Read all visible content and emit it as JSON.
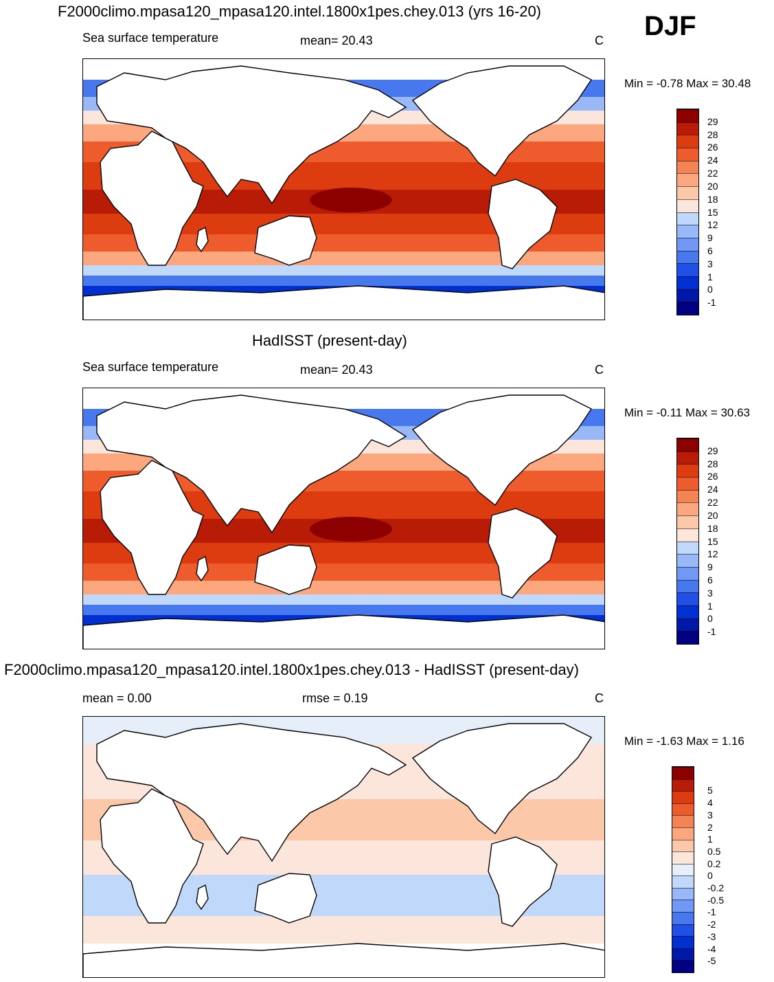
{
  "season": "DJF",
  "panels": [
    {
      "title": "F2000climo.mpasa120_mpasa120.intel.1800x1pes.chey.013 (yrs 16-20)",
      "left_label": "Sea surface temperature",
      "center_label": "mean=  20.43",
      "units": "C",
      "minmax": "Min =  -0.78 Max =  30.48",
      "colorbar": {
        "colors": [
          "#000080",
          "#0018a8",
          "#0030d0",
          "#2050e6",
          "#4878ee",
          "#7098f4",
          "#98b8f8",
          "#c0d8fa",
          "#fce6dc",
          "#fcc8aa",
          "#fca77e",
          "#f58454",
          "#ee5c2e",
          "#dc3c10",
          "#b81c06",
          "#8c0000"
        ],
        "labels": [
          "-1",
          "0",
          "1",
          "3",
          "6",
          "9",
          "12",
          "15",
          "18",
          "20",
          "22",
          "24",
          "26",
          "28",
          "29"
        ]
      }
    },
    {
      "title": "HadISST (present-day)",
      "left_label": "Sea surface temperature",
      "center_label": "mean=  20.43",
      "units": "C",
      "minmax": "Min =  -0.11 Max =  30.63",
      "colorbar": {
        "colors": [
          "#000080",
          "#0018a8",
          "#0030d0",
          "#2050e6",
          "#4878ee",
          "#7098f4",
          "#98b8f8",
          "#c0d8fa",
          "#fce6dc",
          "#fcc8aa",
          "#fca77e",
          "#f58454",
          "#ee5c2e",
          "#dc3c10",
          "#b81c06",
          "#8c0000"
        ],
        "labels": [
          "-1",
          "0",
          "1",
          "3",
          "6",
          "9",
          "12",
          "15",
          "18",
          "20",
          "22",
          "24",
          "26",
          "28",
          "29"
        ]
      }
    },
    {
      "title": "F2000climo.mpasa120_mpasa120.intel.1800x1pes.chey.013 - HadISST (present-day)",
      "left_label": "mean =    0.00",
      "center_label": "rmse =    0.19",
      "units": "C",
      "minmax": "Min =  -1.63 Max =    1.16",
      "colorbar": {
        "colors": [
          "#000080",
          "#0018a8",
          "#0030d0",
          "#2050e6",
          "#4878ee",
          "#7098f4",
          "#98b8f8",
          "#c0d8fa",
          "#e6eefa",
          "#fce6dc",
          "#fcc8aa",
          "#fca77e",
          "#f58454",
          "#ee5c2e",
          "#dc3c10",
          "#b81c06",
          "#8c0000"
        ],
        "labels": [
          "-5",
          "-4",
          "-3",
          "-2",
          "-1",
          "-0.5",
          "-0.2",
          "0",
          "0.2",
          "0.5",
          "1",
          "2",
          "3",
          "4",
          "5"
        ]
      }
    }
  ]
}
